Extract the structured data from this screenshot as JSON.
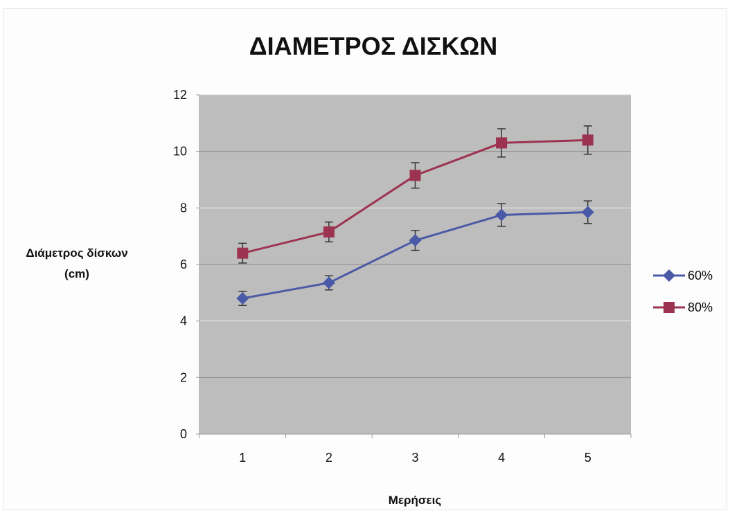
{
  "chart_data": {
    "type": "line",
    "title": "ΔΙΑΜΕΤΡΟΣ ΔΙΣΚΩΝ",
    "xlabel": "Μερήσεις",
    "ylabel_lines": [
      "Διάμετρος δίσκων",
      "(cm)"
    ],
    "categories": [
      "1",
      "2",
      "3",
      "4",
      "5"
    ],
    "ylim": [
      0,
      12
    ],
    "yticks": [
      "0",
      "2",
      "4",
      "6",
      "8",
      "10",
      "12"
    ],
    "grid": true,
    "legend_position": "right",
    "plot_background": "#bdbdbd",
    "series": [
      {
        "name": "60%",
        "color": "#4b5aa6",
        "marker": "diamond",
        "values": [
          4.8,
          5.35,
          6.85,
          7.75,
          7.85
        ],
        "error": [
          0.25,
          0.25,
          0.35,
          0.4,
          0.4
        ]
      },
      {
        "name": "80%",
        "color": "#9c3350",
        "marker": "square",
        "values": [
          6.4,
          7.15,
          9.15,
          10.3,
          10.4
        ],
        "error": [
          0.35,
          0.35,
          0.45,
          0.5,
          0.5
        ]
      }
    ]
  }
}
